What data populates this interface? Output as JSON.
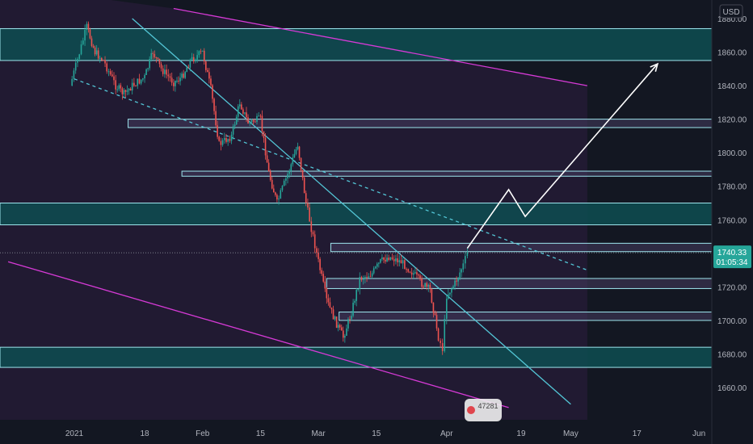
{
  "chart_data": {
    "type": "candlestick",
    "currency": "USD",
    "y_axis": {
      "min": 1645,
      "max": 1885,
      "ticks": [
        1660,
        1680,
        1700,
        1720,
        1740,
        1760,
        1780,
        1800,
        1820,
        1840,
        1860,
        1880
      ]
    },
    "x_axis": {
      "tick_labels": [
        {
          "label": "2021",
          "date": "2021-01-01"
        },
        {
          "label": "18",
          "date": "2021-01-18"
        },
        {
          "label": "Feb",
          "date": "2021-02-01"
        },
        {
          "label": "15",
          "date": "2021-02-15"
        },
        {
          "label": "Mar",
          "date": "2021-03-01"
        },
        {
          "label": "15",
          "date": "2021-03-15"
        },
        {
          "label": "Apr",
          "date": "2021-04-01"
        },
        {
          "label": "19",
          "date": "2021-04-19"
        },
        {
          "label": "May",
          "date": "2021-05-01"
        },
        {
          "label": "17",
          "date": "2021-05-17"
        },
        {
          "label": "Jun",
          "date": "2021-06-01"
        }
      ]
    },
    "current_price": {
      "value": 1740.33,
      "countdown": "01:05:34"
    },
    "price_path": [
      {
        "date": "2020-12-31",
        "price": 1840
      },
      {
        "date": "2021-01-04",
        "price": 1875
      },
      {
        "date": "2021-01-06",
        "price": 1860
      },
      {
        "date": "2021-01-08",
        "price": 1855
      },
      {
        "date": "2021-01-11",
        "price": 1840
      },
      {
        "date": "2021-01-13",
        "price": 1835
      },
      {
        "date": "2021-01-15",
        "price": 1840
      },
      {
        "date": "2021-01-18",
        "price": 1845
      },
      {
        "date": "2021-01-20",
        "price": 1860
      },
      {
        "date": "2021-01-22",
        "price": 1850
      },
      {
        "date": "2021-01-25",
        "price": 1842
      },
      {
        "date": "2021-01-27",
        "price": 1845
      },
      {
        "date": "2021-01-29",
        "price": 1855
      },
      {
        "date": "2021-02-01",
        "price": 1860
      },
      {
        "date": "2021-02-03",
        "price": 1838
      },
      {
        "date": "2021-02-05",
        "price": 1805
      },
      {
        "date": "2021-02-08",
        "price": 1810
      },
      {
        "date": "2021-02-10",
        "price": 1830
      },
      {
        "date": "2021-02-12",
        "price": 1818
      },
      {
        "date": "2021-02-15",
        "price": 1820
      },
      {
        "date": "2021-02-17",
        "price": 1788
      },
      {
        "date": "2021-02-19",
        "price": 1770
      },
      {
        "date": "2021-02-22",
        "price": 1790
      },
      {
        "date": "2021-02-24",
        "price": 1805
      },
      {
        "date": "2021-02-26",
        "price": 1770
      },
      {
        "date": "2021-03-01",
        "price": 1735
      },
      {
        "date": "2021-03-03",
        "price": 1712
      },
      {
        "date": "2021-03-05",
        "price": 1700
      },
      {
        "date": "2021-03-07",
        "price": 1690
      },
      {
        "date": "2021-03-09",
        "price": 1705
      },
      {
        "date": "2021-03-11",
        "price": 1725
      },
      {
        "date": "2021-03-14",
        "price": 1728
      },
      {
        "date": "2021-03-16",
        "price": 1735
      },
      {
        "date": "2021-03-18",
        "price": 1738
      },
      {
        "date": "2021-03-21",
        "price": 1735
      },
      {
        "date": "2021-03-24",
        "price": 1728
      },
      {
        "date": "2021-03-26",
        "price": 1722
      },
      {
        "date": "2021-03-28",
        "price": 1718
      },
      {
        "date": "2021-03-30",
        "price": 1690
      },
      {
        "date": "2021-03-31",
        "price": 1683
      },
      {
        "date": "2021-04-01",
        "price": 1715
      },
      {
        "date": "2021-04-03",
        "price": 1722
      },
      {
        "date": "2021-04-05",
        "price": 1733
      },
      {
        "date": "2021-04-06",
        "price": 1740
      }
    ],
    "horizontal_zones": [
      {
        "top": 1874,
        "bottom": 1855,
        "style": "teal-filled"
      },
      {
        "top": 1820,
        "bottom": 1815,
        "start": "2021-01-14",
        "style": "outline"
      },
      {
        "top": 1789,
        "bottom": 1786,
        "start": "2021-01-27",
        "style": "outline"
      },
      {
        "top": 1770,
        "bottom": 1757,
        "style": "teal-filled"
      },
      {
        "top": 1746,
        "bottom": 1741,
        "start": "2021-03-04",
        "style": "outline"
      },
      {
        "top": 1725,
        "bottom": 1719,
        "start": "2021-03-03",
        "style": "outline"
      },
      {
        "top": 1705,
        "bottom": 1700,
        "start": "2021-03-06",
        "style": "outline"
      },
      {
        "top": 1684,
        "bottom": 1672,
        "style": "teal-filled"
      }
    ],
    "trend_lines": [
      {
        "color": "#53c6d6",
        "from": {
          "date": "2021-01-15",
          "price": 1880
        },
        "to": {
          "date": "2021-05-01",
          "price": 1650
        },
        "style": "solid"
      },
      {
        "color": "#53c6d6",
        "from": {
          "date": "2021-01-01",
          "price": 1844
        },
        "to": {
          "date": "2021-05-05",
          "price": 1730
        },
        "style": "dashed"
      },
      {
        "color": "#d63ad6",
        "from": {
          "date": "2021-01-25",
          "price": 1886
        },
        "to": {
          "date": "2021-05-05",
          "price": 1840
        },
        "style": "solid"
      },
      {
        "color": "#d63ad6",
        "from": {
          "date": "2020-12-16",
          "price": 1735
        },
        "to": {
          "date": "2021-04-16",
          "price": 1648
        },
        "style": "solid"
      }
    ],
    "projection": [
      {
        "date": "2021-04-06",
        "price": 1743
      },
      {
        "date": "2021-04-16",
        "price": 1778
      },
      {
        "date": "2021-04-20",
        "price": 1762
      },
      {
        "date": "2021-05-22",
        "price": 1853
      }
    ],
    "watermark_digits": "47281",
    "colors": {
      "up": "#26a69a",
      "down": "#ef5350",
      "zone": "#0e4a4f",
      "zone_border": "#9ee6ee",
      "trend": "#53c6d6",
      "channel": "#d63ad6",
      "background": "#131722",
      "panel": "#1f1a2d"
    }
  }
}
